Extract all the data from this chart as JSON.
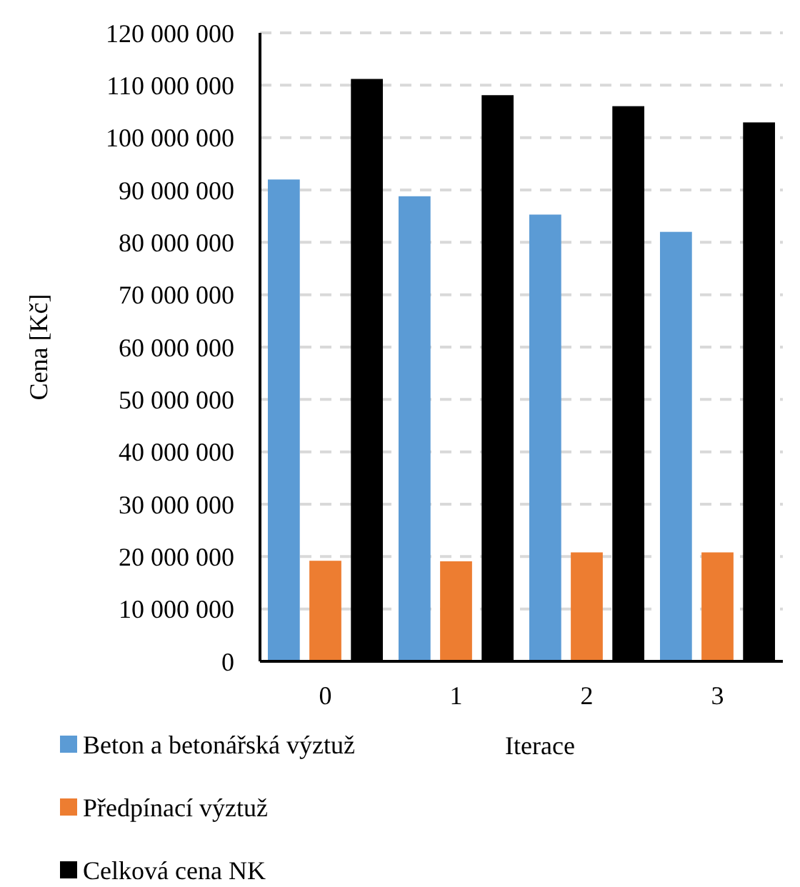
{
  "chart_data": {
    "type": "bar",
    "xlabel": "Iterace",
    "ylabel": "Cena [Kč]",
    "categories": [
      "0",
      "1",
      "2",
      "3"
    ],
    "series": [
      {
        "name": "Beton a betonářská výztuž",
        "color": "#5b9bd5",
        "values": [
          92000000,
          88800000,
          85300000,
          82000000
        ]
      },
      {
        "name": "Předpínací výztuž",
        "color": "#ed7d31",
        "values": [
          19200000,
          19100000,
          20800000,
          20800000
        ]
      },
      {
        "name": "Celková cena NK",
        "color": "#000000",
        "values": [
          111200000,
          108100000,
          106000000,
          102900000
        ]
      }
    ],
    "ylim": [
      0,
      120000000
    ],
    "yticks": [
      {
        "value": 0,
        "label": "0"
      },
      {
        "value": 10000000,
        "label": "10 000 000"
      },
      {
        "value": 20000000,
        "label": "20 000 000"
      },
      {
        "value": 30000000,
        "label": "30 000 000"
      },
      {
        "value": 40000000,
        "label": "40 000 000"
      },
      {
        "value": 50000000,
        "label": "50 000 000"
      },
      {
        "value": 60000000,
        "label": "60 000 000"
      },
      {
        "value": 70000000,
        "label": "70 000 000"
      },
      {
        "value": 80000000,
        "label": "80 000 000"
      },
      {
        "value": 90000000,
        "label": "90 000 000"
      },
      {
        "value": 100000000,
        "label": "100 000 000"
      },
      {
        "value": 110000000,
        "label": "110 000 000"
      },
      {
        "value": 120000000,
        "label": "120 000 000"
      }
    ],
    "grid": "y",
    "legend": "bottom"
  }
}
